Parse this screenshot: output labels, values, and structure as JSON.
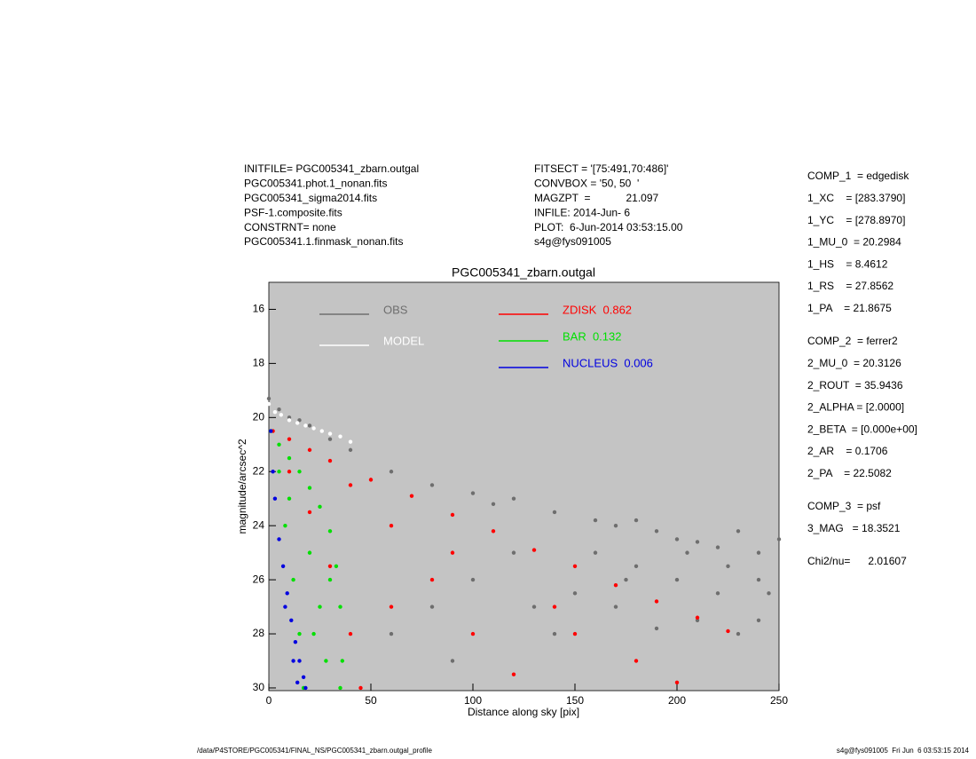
{
  "header": {
    "left": [
      "INITFILE= PGC005341_zbarn.outgal",
      "PGC005341.phot.1_nonan.fits",
      "PGC005341_sigma2014.fits",
      "PSF-1.composite.fits",
      "CONSTRNT= none",
      "PGC005341.1.finmask_nonan.fits"
    ],
    "middle": [
      "FITSECT = '[75:491,70:486]'",
      "CONVBOX = '50, 50  '",
      "MAGZPT  =            21.097",
      "INFILE: 2014-Jun- 6",
      "PLOT:  6-Jun-2014 03:53:15.00",
      "s4g@fys091005"
    ],
    "right": [
      [
        "COMP_1  = edgedisk",
        "1_XC    = [283.3790]",
        "1_YC    = [278.8970]",
        "1_MU_0  = 20.2984",
        "1_HS    = 8.4612",
        "1_RS    = 27.8562",
        "1_PA    = 21.8675"
      ],
      [
        "COMP_2  = ferrer2",
        "2_MU_0  = 20.3126",
        "2_ROUT  = 35.9436",
        "2_ALPHA = [2.0000]",
        "2_BETA  = [0.000e+00]",
        "2_AR    = 0.1706",
        "2_PA    = 22.5082"
      ],
      [
        "COMP_3  = psf",
        "3_MAG   = 18.3521"
      ],
      [
        "Chi2/nu=      2.01607"
      ]
    ]
  },
  "footer": {
    "left": "/data/P4STORE/PGC005341/FINAL_NS/PGC005341_zbarn.outgal_profile",
    "right": "s4g@fys091005  Fri Jun  6 03:53:15 2014"
  },
  "chart_data": {
    "type": "scatter",
    "title": "PGC005341_zbarn.outgal",
    "x_label": "Distance along sky [pix]",
    "y_label": "magnitude/arcsec^2",
    "xlim": [
      0,
      250
    ],
    "xticks": [
      0,
      50,
      100,
      150,
      200,
      250
    ],
    "ylim": [
      30.1,
      15
    ],
    "yticks": [
      16,
      18,
      20,
      22,
      24,
      26,
      28,
      30
    ],
    "background": "#c4c4c4",
    "series": [
      {
        "name": "OBS",
        "color": "#6e6e6e",
        "x": [
          0,
          5,
          10,
          15,
          20,
          30,
          40,
          60,
          80,
          100,
          110,
          120,
          140,
          160,
          170,
          180,
          190,
          200,
          210,
          220,
          230,
          240,
          250,
          160,
          180,
          200,
          220,
          240,
          170,
          210,
          230,
          190,
          245,
          150,
          130,
          140,
          175,
          205,
          225,
          240,
          120,
          100,
          80,
          60,
          90
        ],
        "values": [
          19.3,
          19.7,
          20,
          20.1,
          20.3,
          20.8,
          21.2,
          22,
          22.5,
          22.8,
          23.2,
          23,
          23.5,
          23.8,
          24,
          23.8,
          24.2,
          24.5,
          24.6,
          24.8,
          24.2,
          25,
          24.5,
          25,
          25.5,
          26,
          26.5,
          26,
          27,
          27.5,
          28,
          27.8,
          26.5,
          26.5,
          27,
          28,
          26,
          25,
          25.5,
          27.5,
          25,
          26,
          27,
          28,
          29
        ]
      },
      {
        "name": "MODEL",
        "color": "#ffffff",
        "x": [
          0,
          3,
          6,
          10,
          14,
          18,
          22,
          26,
          30,
          35,
          40
        ],
        "values": [
          19.5,
          19.8,
          19.9,
          20.1,
          20.2,
          20.3,
          20.4,
          20.5,
          20.6,
          20.7,
          20.9
        ]
      },
      {
        "name": "ZDISK  0.862",
        "color": "#ff0000",
        "x": [
          2,
          10,
          20,
          30,
          50,
          70,
          90,
          110,
          130,
          150,
          170,
          190,
          210,
          225,
          10,
          20,
          30,
          40,
          45,
          40,
          60,
          80,
          100,
          120,
          60,
          150,
          180,
          200,
          90,
          140
        ],
        "values": [
          20.5,
          20.8,
          21.2,
          21.6,
          22.3,
          22.9,
          23.6,
          24.2,
          24.9,
          25.5,
          26.2,
          26.8,
          27.4,
          27.9,
          22,
          23.5,
          25.5,
          28,
          30,
          22.5,
          24,
          26,
          28,
          29.5,
          27,
          28,
          29,
          29.8,
          25,
          27
        ]
      },
      {
        "name": "BAR  0.132",
        "color": "#00e000",
        "x": [
          1,
          5,
          10,
          15,
          20,
          25,
          30,
          33,
          35,
          36,
          35,
          5,
          8,
          12,
          15,
          17,
          20,
          25,
          28,
          22,
          10,
          30
        ],
        "values": [
          20.5,
          21,
          21.5,
          22,
          22.6,
          23.3,
          24.2,
          25.5,
          27,
          29,
          30,
          22,
          24,
          26,
          28,
          30,
          25,
          27,
          29,
          28,
          23,
          26
        ]
      },
      {
        "name": "NUCLEUS  0.006",
        "color": "#0000e0",
        "x": [
          1,
          2,
          3,
          5,
          7,
          9,
          11,
          13,
          15,
          17,
          18,
          12,
          14,
          8
        ],
        "values": [
          20.5,
          22,
          23,
          24.5,
          25.5,
          26.5,
          27.5,
          28.3,
          29,
          29.6,
          30,
          29,
          29.8,
          27
        ]
      }
    ]
  }
}
